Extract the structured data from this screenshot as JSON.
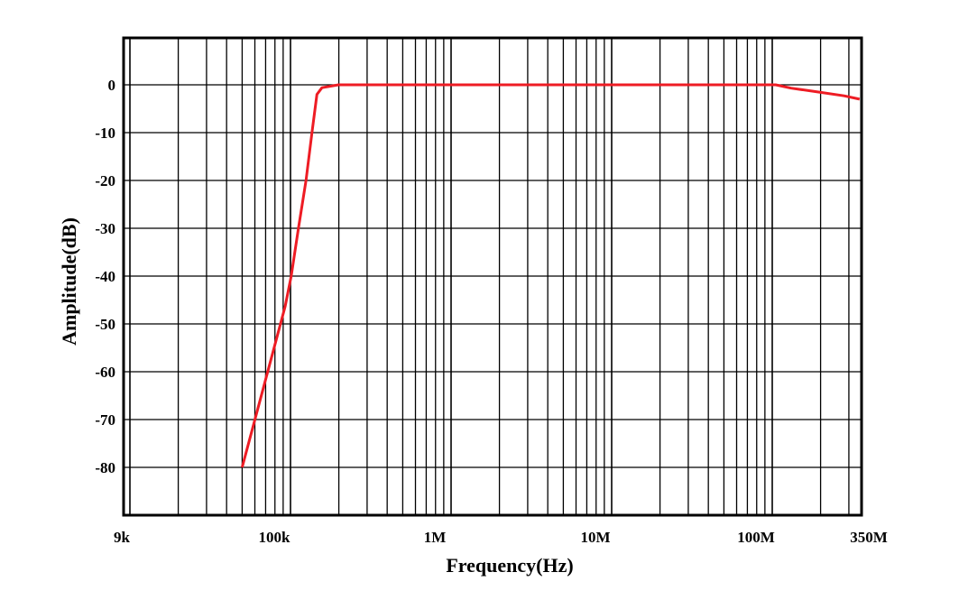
{
  "chart_data": {
    "type": "line",
    "title": "",
    "xlabel": "Frequency(Hz)",
    "ylabel": "Amplitude(dB)",
    "x_scale": "log",
    "xlim": [
      9000,
      350000000
    ],
    "ylim": [
      -90,
      10
    ],
    "grid": true,
    "x_tick_labels": [
      {
        "value": 9000,
        "label": "9k"
      },
      {
        "value": 100000,
        "label": "100k"
      },
      {
        "value": 1000000,
        "label": "1M"
      },
      {
        "value": 10000000,
        "label": "10M"
      },
      {
        "value": 100000000,
        "label": "100M"
      },
      {
        "value": 350000000,
        "label": "350M"
      }
    ],
    "y_ticks": [
      0,
      -10,
      -20,
      -30,
      -40,
      -50,
      -60,
      -70,
      -80
    ],
    "y_tick_labels": [
      "0",
      "-10",
      "-20",
      "-30",
      "-40",
      "-50",
      "-60",
      "-70",
      "-80"
    ],
    "series": [
      {
        "color": "#ee1c24",
        "x": [
          50000,
          92500,
          101000,
          112000,
          125000,
          136000,
          146000,
          157000,
          199000,
          105000000,
          131000000,
          194000000,
          280000000,
          350000000
        ],
        "y": [
          -80,
          -46.4,
          -40,
          -30,
          -20,
          -10,
          -2,
          -0.6,
          0,
          0,
          -0.7,
          -1.5,
          -2.3,
          -3.0
        ]
      }
    ]
  }
}
